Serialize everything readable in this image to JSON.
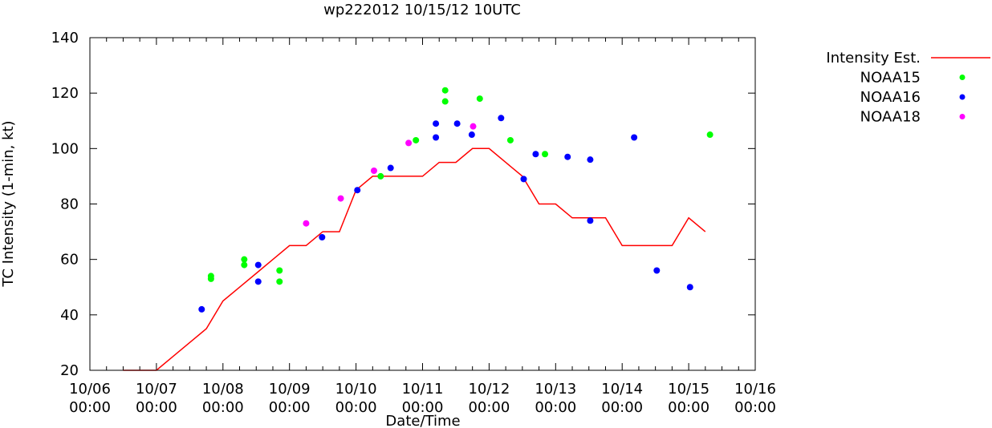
{
  "chart_data": {
    "type": "line",
    "title": "wp222012 10/15/12 10UTC",
    "xlabel": "Date/Time",
    "ylabel": "TC Intensity (1-min, kt)",
    "ylim": [
      20,
      140
    ],
    "yticks": [
      20,
      40,
      60,
      80,
      100,
      120,
      140
    ],
    "xlim_days": [
      0,
      10
    ],
    "xticks": [
      {
        "day": 0,
        "date": "10/06",
        "time": "00:00"
      },
      {
        "day": 1,
        "date": "10/07",
        "time": "00:00"
      },
      {
        "day": 2,
        "date": "10/08",
        "time": "00:00"
      },
      {
        "day": 3,
        "date": "10/09",
        "time": "00:00"
      },
      {
        "day": 4,
        "date": "10/10",
        "time": "00:00"
      },
      {
        "day": 5,
        "date": "10/11",
        "time": "00:00"
      },
      {
        "day": 6,
        "date": "10/12",
        "time": "00:00"
      },
      {
        "day": 7,
        "date": "10/13",
        "time": "00:00"
      },
      {
        "day": 8,
        "date": "10/14",
        "time": "00:00"
      },
      {
        "day": 9,
        "date": "10/15",
        "time": "00:00"
      },
      {
        "day": 10,
        "date": "10/16",
        "time": "00:00"
      }
    ],
    "legend_position": "top-right outside",
    "series": [
      {
        "name": "Intensity Est.",
        "kind": "line",
        "color": "#ff0000",
        "points": [
          [
            0.5,
            20
          ],
          [
            1.0,
            20
          ],
          [
            1.25,
            25
          ],
          [
            1.5,
            30
          ],
          [
            1.75,
            35
          ],
          [
            2.0,
            45
          ],
          [
            2.25,
            50
          ],
          [
            2.5,
            55
          ],
          [
            2.75,
            60
          ],
          [
            3.0,
            65
          ],
          [
            3.25,
            65
          ],
          [
            3.5,
            70
          ],
          [
            3.75,
            70
          ],
          [
            4.0,
            85
          ],
          [
            4.25,
            90
          ],
          [
            4.5,
            90
          ],
          [
            4.75,
            90
          ],
          [
            5.0,
            90
          ],
          [
            5.25,
            95
          ],
          [
            5.5,
            95
          ],
          [
            5.75,
            100
          ],
          [
            6.0,
            100
          ],
          [
            6.25,
            95
          ],
          [
            6.5,
            90
          ],
          [
            6.75,
            80
          ],
          [
            7.0,
            80
          ],
          [
            7.25,
            75
          ],
          [
            7.5,
            75
          ],
          [
            7.75,
            75
          ],
          [
            8.0,
            65
          ],
          [
            8.25,
            65
          ],
          [
            8.5,
            65
          ],
          [
            8.75,
            65
          ],
          [
            9.0,
            75
          ],
          [
            9.25,
            70
          ]
        ]
      },
      {
        "name": "NOAA15",
        "kind": "scatter",
        "color": "#00ff00",
        "points": [
          [
            1.82,
            53
          ],
          [
            1.82,
            54
          ],
          [
            2.32,
            58
          ],
          [
            2.32,
            60
          ],
          [
            2.85,
            52
          ],
          [
            2.85,
            56
          ],
          [
            4.37,
            90
          ],
          [
            4.9,
            103
          ],
          [
            5.34,
            117
          ],
          [
            5.34,
            121
          ],
          [
            5.86,
            118
          ],
          [
            6.32,
            103
          ],
          [
            6.84,
            98
          ],
          [
            9.32,
            105
          ]
        ]
      },
      {
        "name": "NOAA16",
        "kind": "scatter",
        "color": "#0000ff",
        "points": [
          [
            1.68,
            42
          ],
          [
            2.53,
            52
          ],
          [
            2.53,
            58
          ],
          [
            3.49,
            68
          ],
          [
            4.02,
            85
          ],
          [
            4.52,
            93
          ],
          [
            5.2,
            104
          ],
          [
            5.2,
            109
          ],
          [
            5.52,
            109
          ],
          [
            5.74,
            105
          ],
          [
            6.18,
            111
          ],
          [
            6.52,
            89
          ],
          [
            6.7,
            98
          ],
          [
            7.18,
            97
          ],
          [
            7.52,
            74
          ],
          [
            7.52,
            96
          ],
          [
            8.18,
            104
          ],
          [
            8.52,
            56
          ],
          [
            9.02,
            50
          ]
        ]
      },
      {
        "name": "NOAA18",
        "kind": "scatter",
        "color": "#ff00ff",
        "points": [
          [
            3.25,
            73
          ],
          [
            3.77,
            82
          ],
          [
            4.27,
            92
          ],
          [
            4.79,
            102
          ],
          [
            5.76,
            108
          ]
        ]
      }
    ]
  }
}
